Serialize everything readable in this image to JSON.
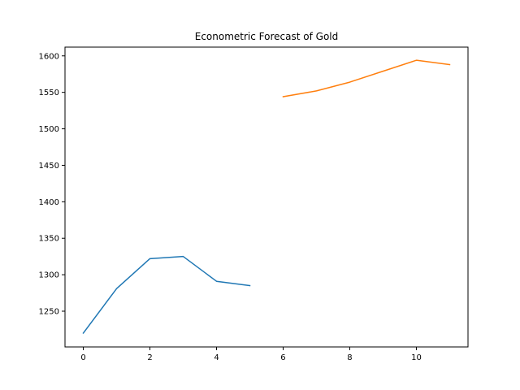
{
  "chart_data": {
    "type": "line",
    "title": "Econometric Forecast of Gold",
    "xlabel": "",
    "ylabel": "",
    "xlim": [
      -0.55,
      11.55
    ],
    "ylim": [
      1201,
      1612
    ],
    "x_ticks": [
      0,
      2,
      4,
      6,
      8,
      10
    ],
    "y_ticks": [
      1250,
      1300,
      1350,
      1400,
      1450,
      1500,
      1550,
      1600
    ],
    "grid": false,
    "legend": "none",
    "series": [
      {
        "color": "#1f77b4",
        "x": [
          0,
          1,
          2,
          3,
          4,
          5
        ],
        "y": [
          1220,
          1281,
          1322,
          1325,
          1291,
          1285
        ]
      },
      {
        "color": "#ff7f0e",
        "x": [
          6,
          7,
          8,
          9,
          10,
          11
        ],
        "y": [
          1544,
          1552,
          1564,
          1579,
          1594,
          1588
        ]
      }
    ]
  }
}
